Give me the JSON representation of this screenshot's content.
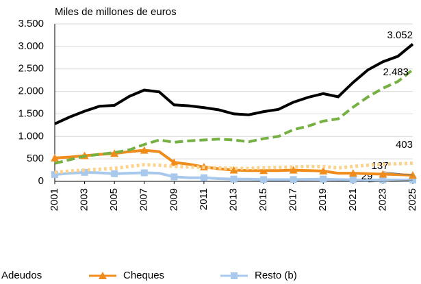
{
  "chart_data": {
    "type": "line",
    "y_label": "Miles de millones de euros",
    "x": [
      2001,
      2002,
      2003,
      2004,
      2005,
      2006,
      2007,
      2008,
      2009,
      2010,
      2011,
      2012,
      2013,
      2014,
      2015,
      2016,
      2017,
      2018,
      2019,
      2020,
      2021,
      2022,
      2023,
      2024,
      2025
    ],
    "xlim": [
      2001,
      2025
    ],
    "xticks": [
      2001,
      2003,
      2005,
      2007,
      2009,
      2011,
      2013,
      2015,
      2017,
      2019,
      2021,
      2023,
      2025
    ],
    "ylim": [
      0,
      3500
    ],
    "yticks": [
      0,
      500,
      {
        "value": 1000,
        "label": "1.000"
      },
      {
        "value": 1500,
        "label": "1.500"
      },
      {
        "value": 2000,
        "label": "2.000"
      },
      {
        "value": 2500,
        "label": "2.500"
      },
      {
        "value": 3000,
        "label": "3.000"
      },
      {
        "value": 3500,
        "label": "3.500"
      }
    ],
    "grid": true,
    "series": [
      {
        "color": "#000000",
        "style": "solid",
        "end_label": "3.052",
        "values": [
          1280,
          1430,
          1560,
          1670,
          1690,
          1890,
          2030,
          1990,
          1700,
          1680,
          1640,
          1590,
          1500,
          1480,
          1550,
          1600,
          1760,
          1870,
          1950,
          1880,
          2200,
          2480,
          2660,
          2780,
          3052
        ]
      },
      {
        "color": "#76b043",
        "style": "dashed",
        "end_label": "2.483",
        "values": [
          400,
          480,
          560,
          600,
          640,
          700,
          820,
          920,
          870,
          900,
          920,
          940,
          920,
          880,
          950,
          1000,
          1150,
          1230,
          1340,
          1390,
          1650,
          1880,
          2070,
          2220,
          2483
        ]
      },
      {
        "name": "Adeudos",
        "color": "#fcd28c",
        "style": "dotted",
        "end_label": "403",
        "values": [
          200,
          230,
          250,
          270,
          290,
          330,
          370,
          360,
          330,
          320,
          310,
          300,
          290,
          290,
          300,
          310,
          320,
          330,
          330,
          300,
          330,
          360,
          380,
          390,
          403
        ]
      },
      {
        "name": "Cheques",
        "color": "#f08c1c",
        "style": "solid",
        "marker": "triangle",
        "end_label": "137",
        "values": [
          520,
          540,
          570,
          600,
          620,
          660,
          690,
          660,
          420,
          380,
          320,
          280,
          250,
          240,
          240,
          240,
          250,
          240,
          230,
          180,
          180,
          170,
          160,
          150,
          137
        ]
      },
      {
        "name": "Resto (b)",
        "color": "#a9c9ec",
        "style": "solid",
        "marker": "square",
        "end_label": "29",
        "values": [
          150,
          180,
          200,
          190,
          170,
          180,
          190,
          180,
          100,
          80,
          80,
          60,
          50,
          50,
          40,
          40,
          40,
          45,
          50,
          40,
          35,
          30,
          30,
          30,
          29
        ]
      }
    ]
  }
}
